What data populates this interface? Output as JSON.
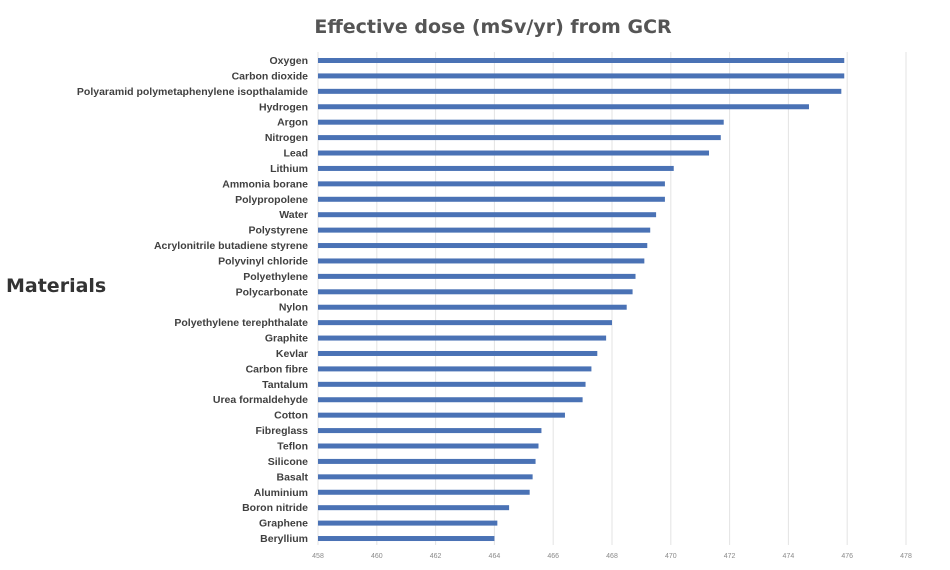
{
  "chart_data": {
    "type": "bar",
    "orientation": "horizontal",
    "title": "Effective dose (mSv/yr)  from GCR",
    "ylabel": "Materials",
    "xlabel": "",
    "xlim": [
      458,
      478
    ],
    "xticks": [
      "458",
      "460",
      "462",
      "464",
      "466",
      "468",
      "470",
      "472",
      "474",
      "476",
      "478"
    ],
    "grid": true,
    "categories": [
      "Oxygen",
      "Carbon dioxide",
      "Polyaramid polymetaphenylene isopthalamide",
      "Hydrogen",
      "Argon",
      "Nitrogen",
      "Lead",
      "Lithium",
      "Ammonia borane",
      "Polypropolene",
      "Water",
      "Polystyrene",
      "Acrylonitrile butadiene styrene",
      "Polyvinyl chloride",
      "Polyethylene",
      "Polycarbonate",
      "Nylon",
      "Polyethylene terephthalate",
      "Graphite",
      "Kevlar",
      "Carbon fibre",
      "Tantalum",
      "Urea formaldehyde",
      "Cotton",
      "Fibreglass",
      "Teflon",
      "Silicone",
      "Basalt",
      "Aluminium",
      "Boron nitride",
      "Graphene",
      "Beryllium"
    ],
    "values": [
      475.9,
      475.9,
      475.8,
      474.7,
      471.8,
      471.7,
      471.3,
      470.1,
      469.8,
      469.8,
      469.5,
      469.3,
      469.2,
      469.1,
      468.8,
      468.7,
      468.5,
      468.0,
      467.8,
      467.5,
      467.3,
      467.1,
      467.0,
      466.4,
      465.6,
      465.5,
      465.4,
      465.3,
      465.2,
      464.5,
      464.1,
      464.0
    ],
    "color": "#4a72b5"
  }
}
